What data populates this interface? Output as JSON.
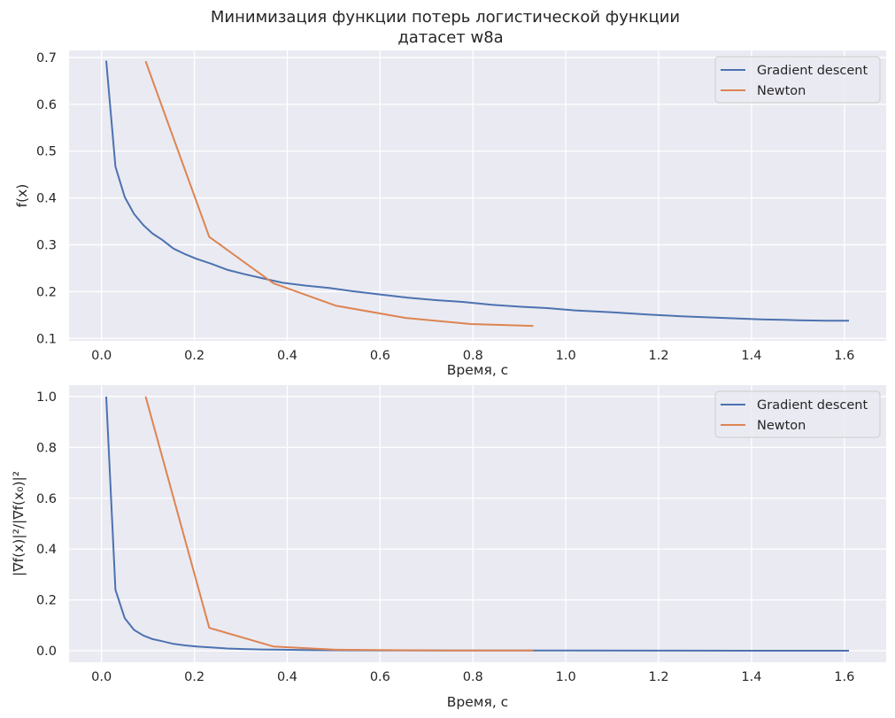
{
  "suptitle": {
    "line1": "Минимизация функции потерь логистической функции",
    "line2": "датасет w8a"
  },
  "colors": {
    "gradient_descent": "#4c72b0",
    "newton": "#dd8452",
    "plot_background": "#eaeaf2",
    "grid": "#ffffff"
  },
  "chart_data": [
    {
      "type": "line",
      "xlabel": "Время, с",
      "ylabel": "f(x)",
      "xlim": [
        -0.07,
        1.69
      ],
      "ylim": [
        0.095,
        0.715
      ],
      "xticks": [
        "0.0",
        "0.2",
        "0.4",
        "0.6",
        "0.8",
        "1.0",
        "1.2",
        "1.4",
        "1.6"
      ],
      "yticks": [
        "0.1",
        "0.2",
        "0.3",
        "0.4",
        "0.5",
        "0.6",
        "0.7"
      ],
      "grid": true,
      "legend": "upper right",
      "series": [
        {
          "name": "Gradient descent",
          "x": [
            0.01,
            0.03,
            0.05,
            0.07,
            0.09,
            0.11,
            0.13,
            0.155,
            0.18,
            0.205,
            0.235,
            0.27,
            0.305,
            0.345,
            0.39,
            0.44,
            0.49,
            0.54,
            0.6,
            0.66,
            0.72,
            0.78,
            0.84,
            0.9,
            0.96,
            1.02,
            1.1,
            1.18,
            1.26,
            1.34,
            1.42,
            1.5,
            1.56,
            1.61
          ],
          "y": [
            0.693,
            0.467,
            0.402,
            0.366,
            0.342,
            0.324,
            0.311,
            0.292,
            0.28,
            0.27,
            0.26,
            0.247,
            0.238,
            0.229,
            0.219,
            0.213,
            0.208,
            0.201,
            0.194,
            0.187,
            0.182,
            0.178,
            0.172,
            0.168,
            0.165,
            0.16,
            0.156,
            0.151,
            0.147,
            0.144,
            0.141,
            0.139,
            0.138,
            0.138
          ]
        },
        {
          "name": "Newton",
          "x": [
            0.095,
            0.232,
            0.37,
            0.505,
            0.655,
            0.795,
            0.93
          ],
          "y": [
            0.692,
            0.317,
            0.218,
            0.17,
            0.144,
            0.131,
            0.127
          ]
        }
      ]
    },
    {
      "type": "line",
      "xlabel": "Время, с",
      "ylabel": "|∇f(x)|²/|∇f(x₀)|²",
      "xlim": [
        -0.07,
        1.69
      ],
      "ylim": [
        -0.045,
        1.045
      ],
      "xticks": [
        "0.0",
        "0.2",
        "0.4",
        "0.6",
        "0.8",
        "1.0",
        "1.2",
        "1.4",
        "1.6"
      ],
      "yticks": [
        "0.0",
        "0.2",
        "0.4",
        "0.6",
        "0.8",
        "1.0"
      ],
      "grid": true,
      "legend": "upper right",
      "series": [
        {
          "name": "Gradient descent",
          "x": [
            0.01,
            0.03,
            0.05,
            0.07,
            0.09,
            0.11,
            0.13,
            0.155,
            0.18,
            0.205,
            0.235,
            0.27,
            0.305,
            0.345,
            0.39,
            0.44,
            0.5,
            0.6,
            0.8,
            1.0,
            1.2,
            1.4,
            1.61
          ],
          "y": [
            1.0,
            0.24,
            0.128,
            0.082,
            0.06,
            0.046,
            0.038,
            0.027,
            0.021,
            0.017,
            0.013,
            0.009,
            0.007,
            0.005,
            0.004,
            0.003,
            0.002,
            0.0015,
            0.001,
            0.0008,
            0.0005,
            0.0003,
            0.0002
          ]
        },
        {
          "name": "Newton",
          "x": [
            0.095,
            0.232,
            0.37,
            0.505,
            0.655,
            0.795,
            0.93
          ],
          "y": [
            1.0,
            0.09,
            0.017,
            0.004,
            0.002,
            0.001,
            0.0008
          ]
        }
      ]
    }
  ]
}
